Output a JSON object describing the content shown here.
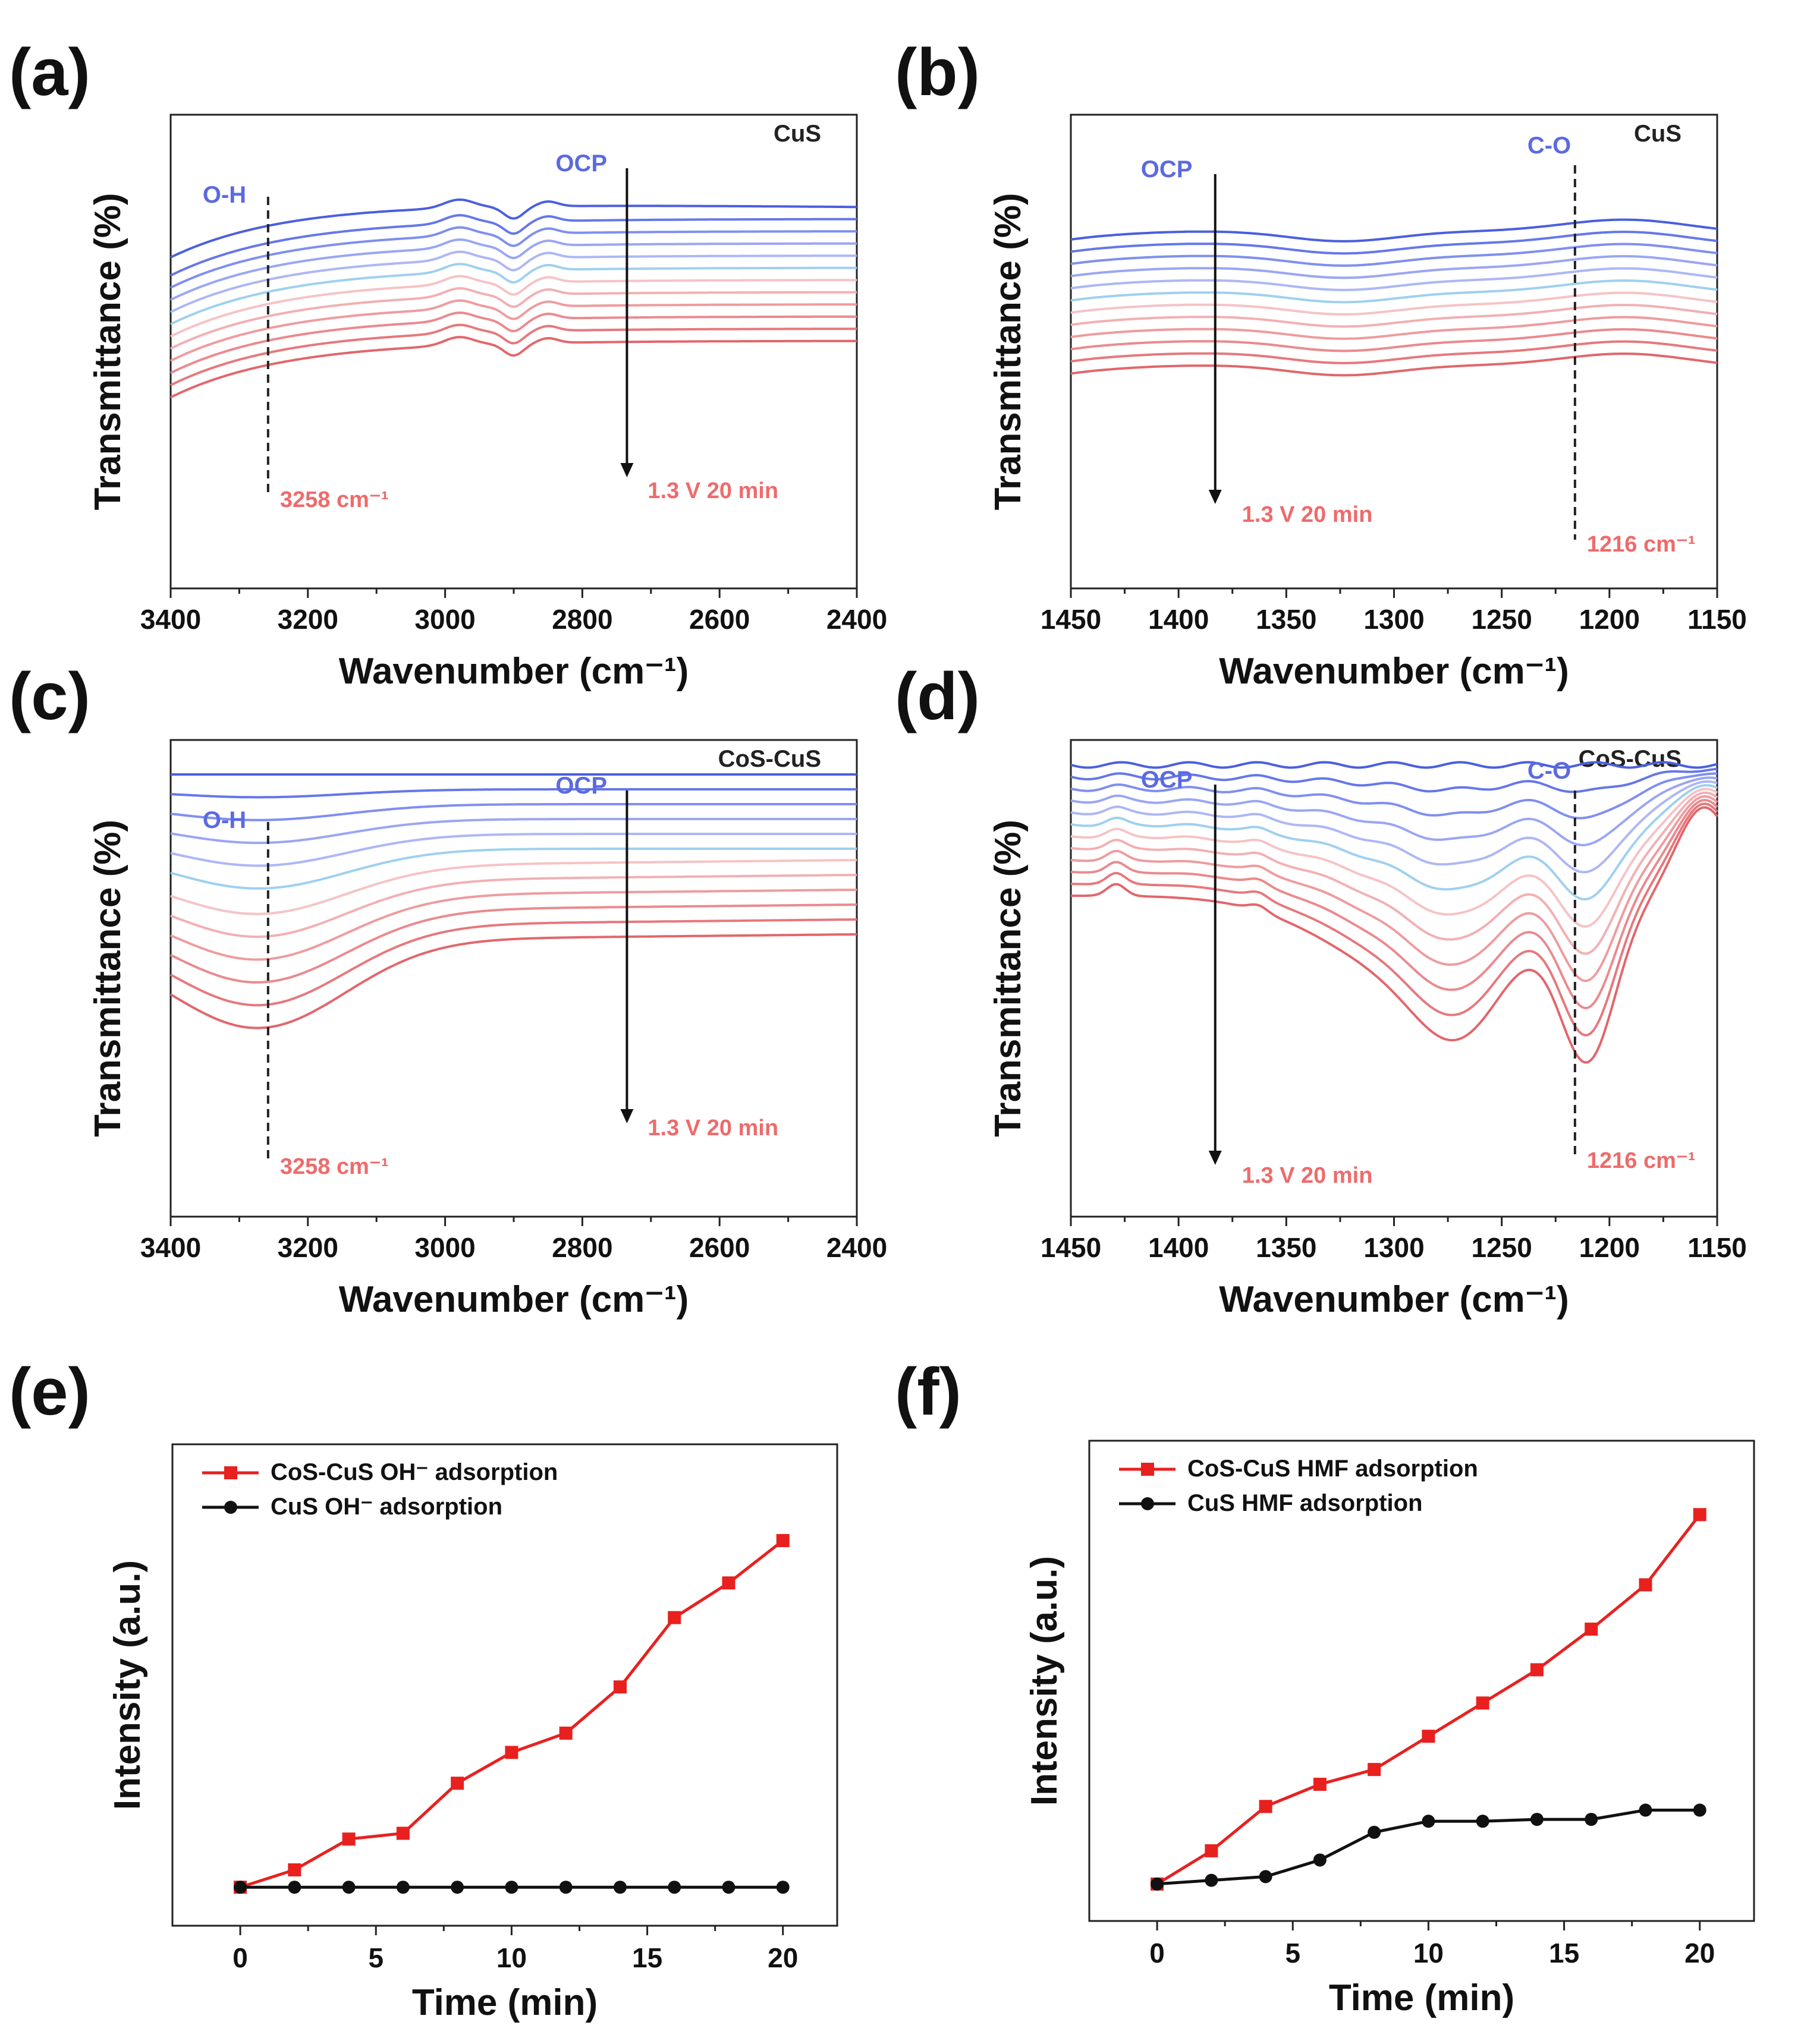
{
  "chart_data": [
    {
      "panel": "(a)",
      "type": "line",
      "material": "CuS",
      "xlabel": "Wavenumber (cm⁻¹)",
      "ylabel": "Transmittance (%)",
      "xlim": [
        3400,
        2400
      ],
      "xticks": [
        "3400",
        "3200",
        "3000",
        "2800",
        "2600",
        "2400"
      ],
      "peak_label": "O-H",
      "peak_position": 3258,
      "peak_value_label": "3258 cm⁻¹",
      "arrow_start_label": "OCP",
      "arrow_end_label": "1.3 V 20 min",
      "series_count": 12,
      "series_colors": [
        "#4a5fe0",
        "#6577ea",
        "#7f8ff0",
        "#9aa6f4",
        "#adb7f6",
        "#9fd0ef",
        "#f6c3c6",
        "#f2b0b3",
        "#ee9c9f",
        "#ea8a8e",
        "#e6787c",
        "#e2666b"
      ]
    },
    {
      "panel": "(b)",
      "type": "line",
      "material": "CuS",
      "xlabel": "Wavenumber (cm⁻¹)",
      "ylabel": "Transmittance (%)",
      "xlim": [
        1450,
        1150
      ],
      "xticks": [
        "1450",
        "1400",
        "1350",
        "1300",
        "1250",
        "1200",
        "1150"
      ],
      "peak_label": "C-O",
      "peak_position": 1216,
      "peak_value_label": "1216 cm⁻¹",
      "arrow_start_label": "OCP",
      "arrow_end_label": "1.3 V 20 min",
      "series_count": 12,
      "series_colors": [
        "#4a5fe0",
        "#6577ea",
        "#7f8ff0",
        "#9aa6f4",
        "#adb7f6",
        "#9fd0ef",
        "#f6c3c6",
        "#f2b0b3",
        "#ee9c9f",
        "#ea8a8e",
        "#e6787c",
        "#e2666b"
      ]
    },
    {
      "panel": "(c)",
      "type": "line",
      "material": "CoS-CuS",
      "xlabel": "Wavenumber (cm⁻¹)",
      "ylabel": "Transmittance (%)",
      "xlim": [
        3400,
        2400
      ],
      "xticks": [
        "3400",
        "3200",
        "3000",
        "2800",
        "2600",
        "2400"
      ],
      "peak_label": "O-H",
      "peak_position": 3258,
      "peak_value_label": "3258 cm⁻¹",
      "arrow_start_label": "OCP",
      "arrow_end_label": "1.3 V 20 min",
      "series_count": 12,
      "series_colors": [
        "#4a5fe0",
        "#6577ea",
        "#7f8ff0",
        "#9aa6f4",
        "#adb7f6",
        "#9fd0ef",
        "#f6c3c6",
        "#f2b0b3",
        "#ee9c9f",
        "#ea8a8e",
        "#e6787c",
        "#e2666b"
      ]
    },
    {
      "panel": "(d)",
      "type": "line",
      "material": "CoS-CuS",
      "xlabel": "Wavenumber (cm⁻¹)",
      "ylabel": "Transmittance (%)",
      "xlim": [
        1450,
        1150
      ],
      "xticks": [
        "1450",
        "1400",
        "1350",
        "1300",
        "1250",
        "1200",
        "1150"
      ],
      "peak_label": "C-O",
      "peak_position": 1216,
      "peak_value_label": "1216 cm⁻¹",
      "arrow_start_label": "OCP",
      "arrow_end_label": "1.3 V 20 min",
      "series_count": 12,
      "series_colors": [
        "#4a5fe0",
        "#6577ea",
        "#7f8ff0",
        "#9aa6f4",
        "#adb7f6",
        "#9fd0ef",
        "#f6c3c6",
        "#f2b0b3",
        "#ee9c9f",
        "#ea8a8e",
        "#e6787c",
        "#e2666b"
      ]
    },
    {
      "panel": "(e)",
      "type": "line",
      "xlabel": "Time (min)",
      "ylabel": "Intensity (a.u.)",
      "xlim": [
        -2.5,
        22
      ],
      "ylim": [
        -0.1,
        1.15
      ],
      "xticks": [
        "0",
        "5",
        "10",
        "15",
        "20"
      ],
      "x": [
        0,
        2,
        4,
        6,
        8,
        10,
        12,
        14,
        16,
        18,
        20
      ],
      "series": [
        {
          "name": "CoS-CuS OH⁻ adsorption",
          "color": "#e8211f",
          "marker": "square",
          "values": [
            0,
            0.045,
            0.125,
            0.14,
            0.27,
            0.35,
            0.4,
            0.52,
            0.7,
            0.79,
            0.9
          ]
        },
        {
          "name": "CuS OH⁻ adsorption",
          "color": "#111111",
          "marker": "circle",
          "values": [
            0,
            0,
            0,
            0,
            0,
            0,
            0,
            0,
            0,
            0,
            0
          ]
        }
      ]
    },
    {
      "panel": "(f)",
      "type": "line",
      "xlabel": "Time (min)",
      "ylabel": "Intensity (a.u.)",
      "xlim": [
        -2.5,
        22
      ],
      "ylim": [
        -0.1,
        1.2
      ],
      "xticks": [
        "0",
        "5",
        "10",
        "15",
        "20"
      ],
      "x": [
        0,
        2,
        4,
        6,
        8,
        10,
        12,
        14,
        16,
        18,
        20
      ],
      "series": [
        {
          "name": "CoS-CuS HMF adsorption",
          "color": "#e8211f",
          "marker": "square",
          "values": [
            0,
            0.09,
            0.21,
            0.27,
            0.31,
            0.4,
            0.49,
            0.58,
            0.69,
            0.81,
            1.0
          ]
        },
        {
          "name": "CuS HMF adsorption",
          "color": "#111111",
          "marker": "circle",
          "values": [
            0,
            0.01,
            0.02,
            0.065,
            0.14,
            0.17,
            0.17,
            0.175,
            0.175,
            0.2,
            0.2
          ]
        }
      ]
    }
  ]
}
